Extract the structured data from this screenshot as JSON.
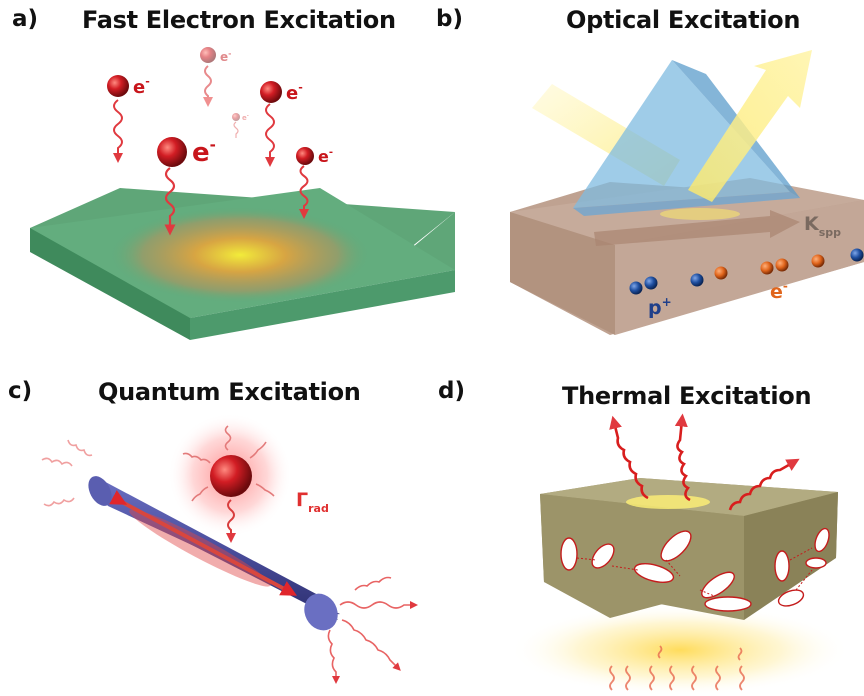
{
  "panels": {
    "a": {
      "letter": "a)",
      "title": "Fast Electron Excitation",
      "electron_label": "e",
      "electron_charge": "-"
    },
    "b": {
      "letter": "b)",
      "title": "Optical Excitation",
      "k_label": "K",
      "k_subscript": "spp",
      "proton_label": "p",
      "proton_charge": "+",
      "electron_label": "e",
      "electron_charge": "-"
    },
    "c": {
      "letter": "c)",
      "title": "Quantum Excitation",
      "gamma_label": "Γ",
      "gamma_subscript": "rad"
    },
    "d": {
      "letter": "d)",
      "title": "Thermal Excitation"
    }
  },
  "colors": {
    "electron_red": "#c8151b",
    "wave_red": "#e0393f",
    "slab_green": "#5fa678",
    "slab_tan": "#bfa291",
    "prism_blue": "#7fbbe0",
    "light_yellow": "#fde96a",
    "rod_blue": "#4a4d9c",
    "block_olive": "#9c9469",
    "proton_blue": "#1f4fa0",
    "electron_orange": "#e0651c"
  }
}
